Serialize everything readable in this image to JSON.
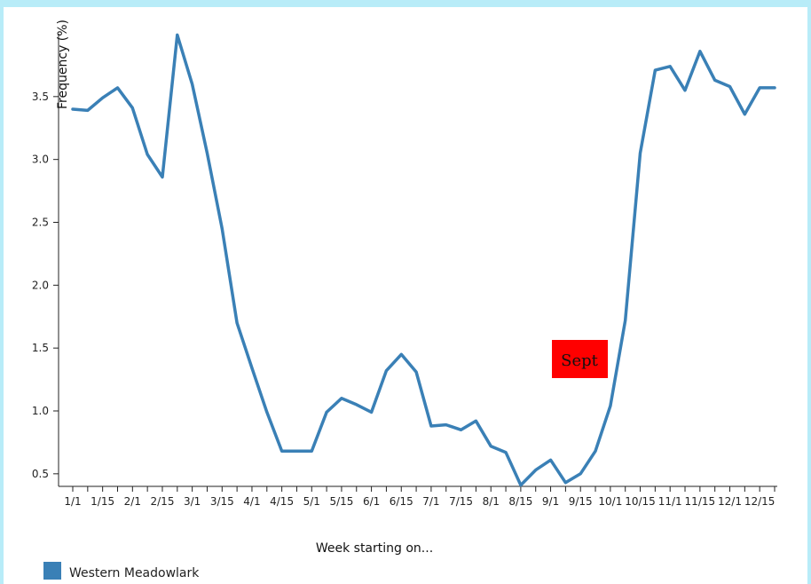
{
  "chart_data": {
    "type": "line",
    "ylabel": "Frequency (%)",
    "xlabel": "Week starting on...",
    "ylim": [
      0.4,
      4.0
    ],
    "yticks": [
      "0.5",
      "1.0",
      "1.5",
      "2.0",
      "2.5",
      "3.0",
      "3.5"
    ],
    "xtick_labels": [
      "1/1",
      "1/15",
      "2/1",
      "2/15",
      "3/1",
      "3/15",
      "4/1",
      "4/15",
      "5/1",
      "5/15",
      "6/1",
      "6/15",
      "7/1",
      "7/15",
      "8/1",
      "8/15",
      "9/1",
      "9/15",
      "10/1",
      "10/15",
      "11/1",
      "11/15",
      "12/1",
      "12/15"
    ],
    "series": [
      {
        "name": "Western Meadowlark",
        "color": "#3a80b6",
        "values": [
          3.4,
          3.39,
          3.49,
          3.57,
          3.41,
          3.04,
          2.86,
          3.99,
          3.6,
          3.05,
          2.45,
          1.7,
          1.34,
          0.99,
          0.68,
          0.68,
          0.68,
          0.99,
          1.1,
          1.05,
          0.99,
          1.32,
          1.45,
          1.31,
          0.88,
          0.89,
          0.85,
          0.92,
          0.72,
          0.67,
          0.41,
          0.53,
          0.61,
          0.43,
          0.5,
          0.68,
          1.04,
          1.72,
          3.05,
          3.71,
          3.74,
          3.55,
          3.86,
          3.63,
          3.58,
          3.36,
          3.57,
          3.57
        ]
      }
    ],
    "legend_position": "bottom-left",
    "annotation": {
      "text": "Sept",
      "background": "#ff0000"
    }
  }
}
